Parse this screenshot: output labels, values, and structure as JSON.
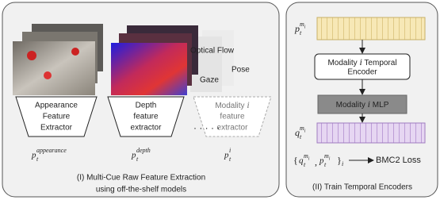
{
  "left_panel": {
    "cue_labels": [
      "Optical Flow",
      "Pose",
      "Gaze"
    ],
    "extractors": [
      {
        "lines": [
          "Appearance",
          "Feature",
          "Extractor"
        ]
      },
      {
        "lines": [
          "Depth",
          "feature",
          "extractor"
        ]
      },
      {
        "lines": [
          "Modality",
          "feature",
          "extractor"
        ],
        "var": "i"
      }
    ],
    "ellipsis": "· · · · ·",
    "features": [
      {
        "base": "p",
        "sub": "t",
        "sup": "appearance"
      },
      {
        "base": "p",
        "sub": "t",
        "sup": "depth"
      },
      {
        "base": "p",
        "sub": "t",
        "sup": "i"
      }
    ],
    "caption": [
      "(I) Multi-Cue Raw Feature Extraction",
      "using off-the-shelf models"
    ]
  },
  "right_panel": {
    "input": {
      "base": "p",
      "sub": "t",
      "sup": "m",
      "sup_sub": "i"
    },
    "encoder": {
      "line1": "Modality",
      "var": "i",
      "line1_end": "Temporal",
      "line2": "Encoder"
    },
    "mlp": {
      "text": "Modality",
      "var": "i",
      "end": "MLP"
    },
    "output": {
      "base": "q",
      "sub": "t",
      "sup": "m",
      "sup_sub": "i"
    },
    "loss": {
      "open": "{",
      "sep": ",",
      "close": "}",
      "outer_sub": "i",
      "q": {
        "base": "q",
        "sub": "t",
        "sup": "m",
        "sup_sub": "i"
      },
      "p": {
        "base": "p",
        "sub": "t",
        "sup": "m",
        "sup_sub": "i"
      },
      "target": "BMC2 Loss"
    },
    "caption": "(II) Train Temporal Encoders"
  }
}
